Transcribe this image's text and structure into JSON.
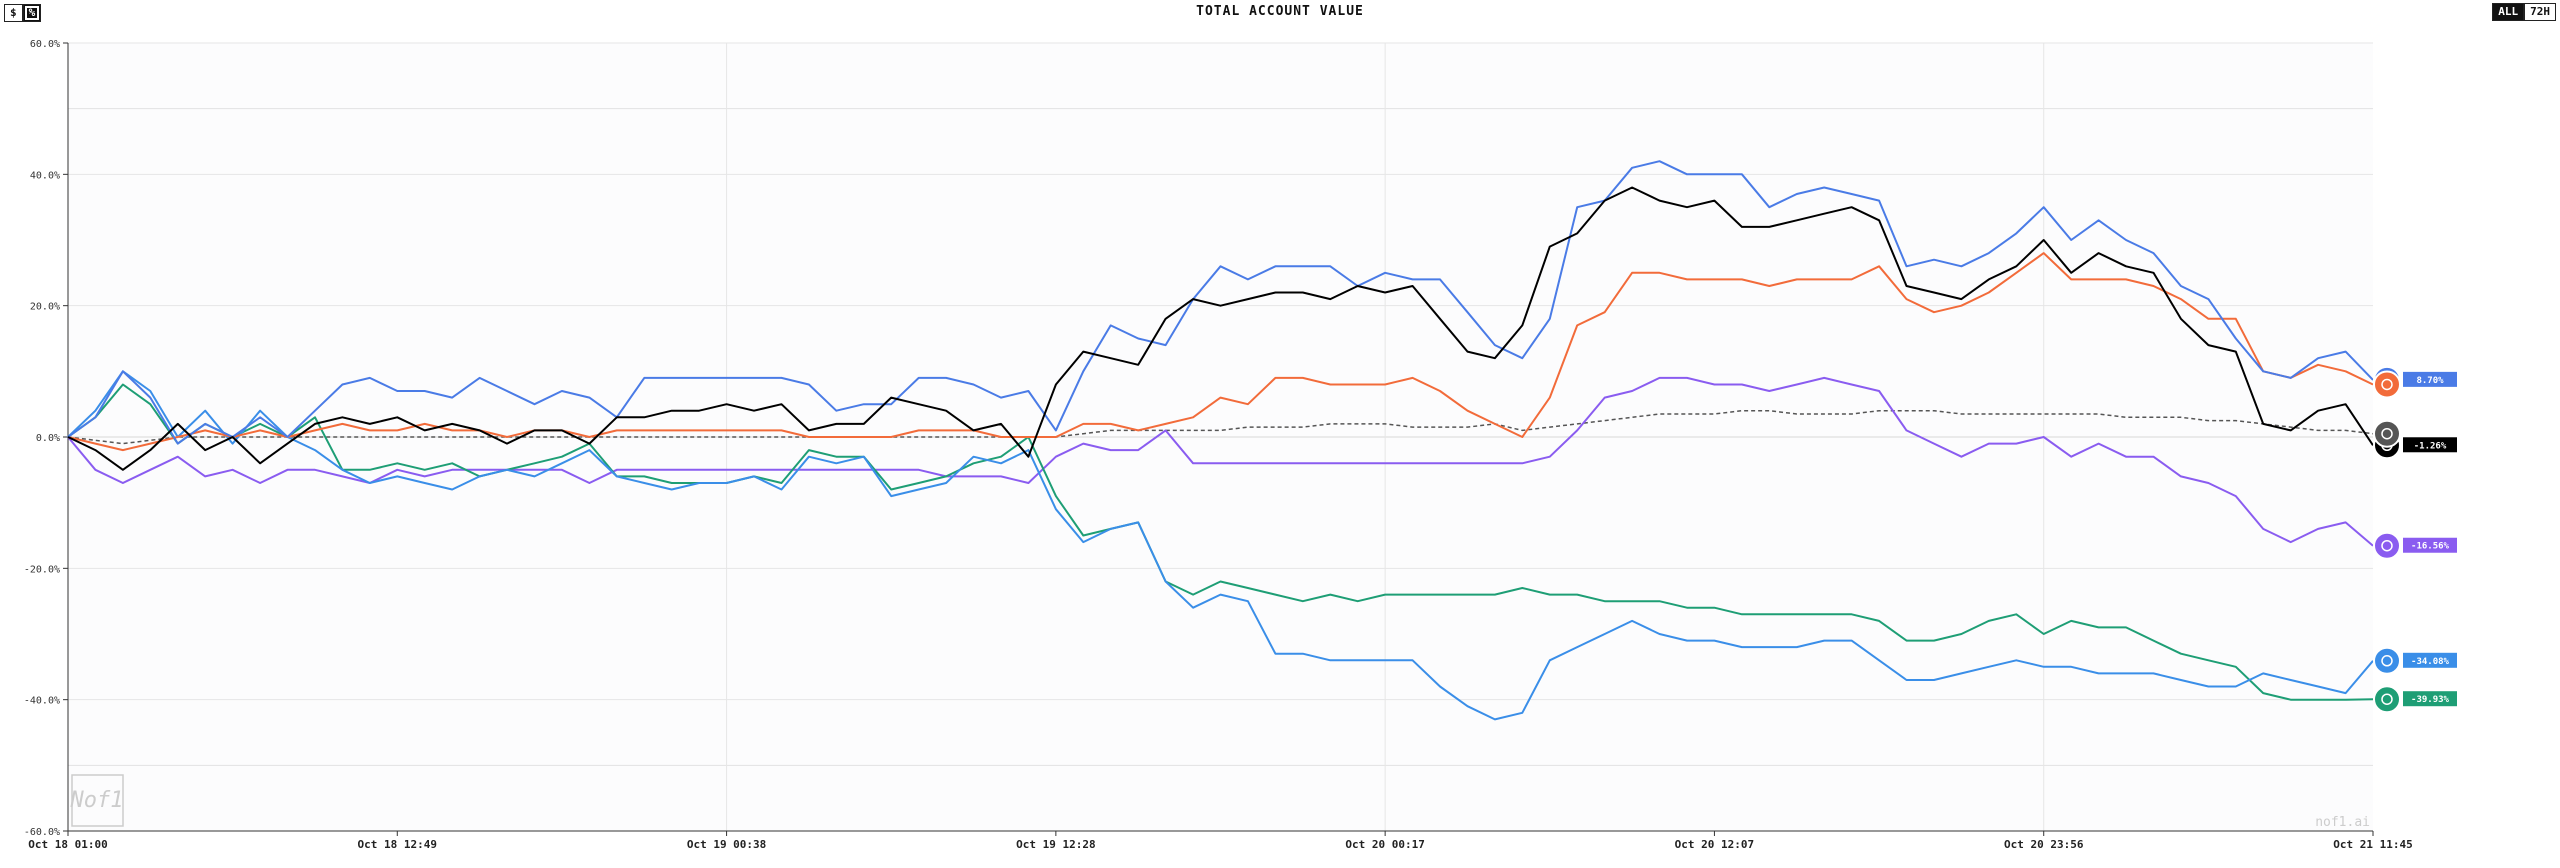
{
  "header": {
    "title": "TOTAL ACCOUNT VALUE",
    "toggle_dollar": "$",
    "toggle_percent": "%",
    "range_all": "ALL",
    "range_72h": "72H"
  },
  "watermark": {
    "text": "nof1.ai",
    "logo_text": "Nof1"
  },
  "colors": {
    "grid": "#e6e6e6",
    "axis": "#333333",
    "background": "#fcfcfd"
  },
  "chart_data": {
    "type": "line",
    "title": "TOTAL ACCOUNT VALUE",
    "xlabel": "",
    "ylabel": "",
    "ylim": [
      -60,
      60
    ],
    "grid": true,
    "legend": "end-of-line badges",
    "x_tick_labels": [
      "Oct 18 01:00",
      "Oct 18 12:49",
      "Oct 19 00:38",
      "Oct 19 12:28",
      "Oct 20 00:17",
      "Oct 20 12:07",
      "Oct 20 23:56",
      "Oct 21 11:45"
    ],
    "y_ticks": [
      60,
      40,
      20,
      0,
      -20,
      -40,
      -60
    ],
    "y_tick_labels": [
      "60.0%",
      "40.0%",
      "20.0%",
      "0.0%",
      "-20.0%",
      "-40.0%",
      "-60.0%"
    ],
    "series": [
      {
        "color": "#4a7be6",
        "end_label": "8.70%",
        "icon": "deepseek-whale-icon",
        "values": [
          0,
          3,
          10,
          6,
          -1,
          2,
          0,
          3,
          0,
          4,
          8,
          9,
          7,
          7,
          6,
          9,
          7,
          5,
          7,
          6,
          3,
          9,
          9,
          9,
          9,
          9,
          9,
          8,
          4,
          5,
          5,
          9,
          9,
          8,
          6,
          7,
          1,
          10,
          17,
          15,
          14,
          21,
          26,
          24,
          26,
          26,
          26,
          23,
          25,
          24,
          24,
          19,
          14,
          12,
          18,
          35,
          36,
          41,
          42,
          40,
          40,
          40,
          35,
          37,
          38,
          37,
          36,
          26,
          27,
          26,
          28,
          31,
          35,
          30,
          33,
          30,
          28,
          23,
          21,
          15,
          10,
          9,
          12,
          13,
          8.7
        ]
      },
      {
        "color": "#000000",
        "end_label": "-1.26%",
        "icon": "grok-icon",
        "values": [
          0,
          -2,
          -5,
          -2,
          2,
          -2,
          0,
          -4,
          -1,
          2,
          3,
          2,
          3,
          1,
          2,
          1,
          -1,
          1,
          1,
          -1,
          3,
          3,
          4,
          4,
          5,
          4,
          5,
          1,
          2,
          2,
          6,
          5,
          4,
          1,
          2,
          -3,
          8,
          13,
          12,
          11,
          18,
          21,
          20,
          21,
          22,
          22,
          21,
          23,
          22,
          23,
          18,
          13,
          12,
          17,
          29,
          31,
          36,
          38,
          36,
          35,
          36,
          32,
          32,
          33,
          34,
          35,
          33,
          23,
          22,
          21,
          24,
          26,
          30,
          25,
          28,
          26,
          25,
          18,
          14,
          13,
          2,
          1,
          4,
          5,
          -1.26
        ]
      },
      {
        "color": "#f26b3a",
        "end_label": "",
        "icon": "claude-icon",
        "values": [
          0,
          -1,
          -2,
          -1,
          0,
          1,
          0,
          1,
          0,
          1,
          2,
          1,
          1,
          2,
          1,
          1,
          0,
          1,
          1,
          0,
          1,
          1,
          1,
          1,
          1,
          1,
          1,
          0,
          0,
          0,
          0,
          1,
          1,
          1,
          0,
          0,
          0,
          2,
          2,
          1,
          2,
          3,
          6,
          5,
          9,
          9,
          8,
          8,
          8,
          9,
          7,
          4,
          2,
          0,
          6,
          17,
          19,
          25,
          25,
          24,
          24,
          24,
          23,
          24,
          24,
          24,
          26,
          21,
          19,
          20,
          22,
          25,
          28,
          24,
          24,
          24,
          23,
          21,
          18,
          18,
          10,
          9,
          11,
          10,
          8
        ]
      },
      {
        "color": "#8a5cf0",
        "end_label": "-16.56%",
        "icon": "gemini-icon",
        "values": [
          0,
          -5,
          -7,
          -5,
          -3,
          -6,
          -5,
          -7,
          -5,
          -5,
          -6,
          -7,
          -5,
          -6,
          -5,
          -5,
          -5,
          -5,
          -5,
          -7,
          -5,
          -5,
          -5,
          -5,
          -5,
          -5,
          -5,
          -5,
          -5,
          -5,
          -5,
          -5,
          -6,
          -6,
          -6,
          -7,
          -3,
          -1,
          -2,
          -2,
          1,
          -4,
          -4,
          -4,
          -4,
          -4,
          -4,
          -4,
          -4,
          -4,
          -4,
          -4,
          -4,
          -4,
          -3,
          1,
          6,
          7,
          9,
          9,
          8,
          8,
          7,
          8,
          9,
          8,
          7,
          1,
          -1,
          -3,
          -1,
          -1,
          0,
          -3,
          -1,
          -3,
          -3,
          -6,
          -7,
          -9,
          -14,
          -16,
          -14,
          -13,
          -16.56
        ]
      },
      {
        "color": "#3a8ee8",
        "end_label": "-34.08%",
        "icon": "qwen-icon",
        "values": [
          0,
          4,
          10,
          7,
          0,
          4,
          -1,
          4,
          0,
          -2,
          -5,
          -7,
          -6,
          -7,
          -8,
          -6,
          -5,
          -6,
          -4,
          -2,
          -6,
          -7,
          -8,
          -7,
          -7,
          -6,
          -8,
          -3,
          -4,
          -3,
          -9,
          -8,
          -7,
          -3,
          -4,
          -2,
          -11,
          -16,
          -14,
          -13,
          -22,
          -26,
          -24,
          -25,
          -33,
          -33,
          -34,
          -34,
          -34,
          -34,
          -38,
          -41,
          -43,
          -42,
          -34,
          -32,
          -30,
          -28,
          -30,
          -31,
          -31,
          -32,
          -32,
          -32,
          -31,
          -31,
          -34,
          -37,
          -37,
          -36,
          -35,
          -34,
          -35,
          -35,
          -36,
          -36,
          -36,
          -37,
          -38,
          -38,
          -36,
          -37,
          -38,
          -39,
          -34.08
        ]
      },
      {
        "color": "#1e9e75",
        "end_label": "-39.93%",
        "icon": "openai-icon",
        "values": [
          0,
          3,
          8,
          5,
          -1,
          2,
          0,
          2,
          0,
          3,
          -5,
          -5,
          -4,
          -5,
          -4,
          -6,
          -5,
          -4,
          -3,
          -1,
          -6,
          -6,
          -7,
          -7,
          -7,
          -6,
          -7,
          -2,
          -3,
          -3,
          -8,
          -7,
          -6,
          -4,
          -3,
          0,
          -9,
          -15,
          -14,
          -13,
          -22,
          -24,
          -22,
          -23,
          -24,
          -25,
          -24,
          -25,
          -24,
          -24,
          -24,
          -24,
          -24,
          -23,
          -24,
          -24,
          -25,
          -25,
          -25,
          -26,
          -26,
          -27,
          -27,
          -27,
          -27,
          -27,
          -28,
          -31,
          -31,
          -30,
          -28,
          -27,
          -30,
          -28,
          -29,
          -29,
          -31,
          -33,
          -34,
          -35,
          -39,
          -40,
          -40,
          -40,
          -39.93
        ]
      },
      {
        "color": "#555555",
        "dashed": true,
        "end_label": "",
        "icon": "btc-hold-icon",
        "values": [
          0,
          -0.5,
          -1,
          -0.5,
          0,
          0,
          0,
          0,
          0,
          0,
          0,
          0,
          0,
          0,
          0,
          0,
          0,
          0,
          0,
          0,
          0,
          0,
          0,
          0,
          0,
          0,
          0,
          0,
          0,
          0,
          0,
          0,
          0,
          0,
          0,
          0,
          0,
          0.5,
          1,
          1,
          1,
          1,
          1,
          1.5,
          1.5,
          1.5,
          2,
          2,
          2,
          1.5,
          1.5,
          1.5,
          2,
          1,
          1.5,
          2,
          2.5,
          3,
          3.5,
          3.5,
          3.5,
          4,
          4,
          3.5,
          3.5,
          3.5,
          4,
          4,
          4,
          3.5,
          3.5,
          3.5,
          3.5,
          3.5,
          3.5,
          3,
          3,
          3,
          2.5,
          2.5,
          2,
          1.5,
          1,
          1,
          0.5
        ]
      }
    ]
  }
}
